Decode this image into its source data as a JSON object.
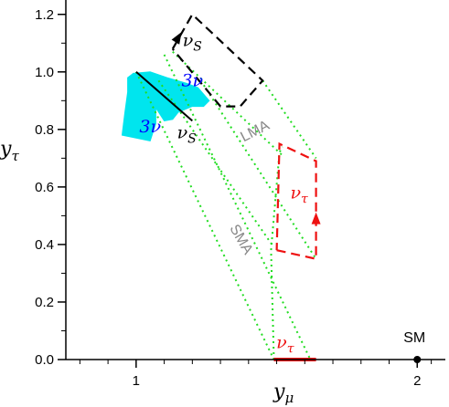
{
  "chart_data": {
    "type": "line",
    "xlabel": "y",
    "xlabel_sub": "μ",
    "ylabel": "y",
    "ylabel_sub": "τ",
    "xlim": [
      0.75,
      2.1
    ],
    "ylim": [
      0.0,
      1.25
    ],
    "xticks": [
      {
        "value": 1,
        "label": "1"
      },
      {
        "value": 2,
        "label": "2"
      }
    ],
    "xminor": [
      0.8,
      0.9,
      1.1,
      1.2,
      1.3,
      1.4,
      1.5,
      1.6,
      1.7,
      1.8,
      1.9,
      2.05
    ],
    "yticks": [
      {
        "value": 0.0,
        "label": "0.0"
      },
      {
        "value": 0.2,
        "label": "0.2"
      },
      {
        "value": 0.4,
        "label": "0.4"
      },
      {
        "value": 0.6,
        "label": "0.6"
      },
      {
        "value": 0.8,
        "label": "0.8"
      },
      {
        "value": 1.0,
        "label": "1.0"
      },
      {
        "value": 1.2,
        "label": "1.2"
      }
    ],
    "yminor": [
      0.1,
      0.3,
      0.5,
      0.7,
      0.9,
      1.1
    ],
    "colors": {
      "axis": "#000000",
      "green": "#22dd22",
      "black": "#000000",
      "red": "#ee1111",
      "cyan": "#00e5ee",
      "blue": "#0000ff",
      "gray": "#888888"
    },
    "series": [
      {
        "style": "dotted-green",
        "points": [
          [
            1.0,
            1.0
          ],
          [
            1.49,
            0.0
          ]
        ]
      },
      {
        "style": "dotted-green",
        "points": [
          [
            1.1,
            1.06
          ],
          [
            1.62,
            0.0
          ]
        ]
      },
      {
        "style": "dotted-green",
        "points": [
          [
            1.08,
            0.97
          ],
          [
            1.49,
            0.39
          ]
        ]
      },
      {
        "style": "dotted-green",
        "points": [
          [
            1.23,
            0.97
          ],
          [
            1.64,
            0.35
          ]
        ]
      },
      {
        "style": "dotted-green",
        "points": [
          [
            1.13,
            1.07
          ],
          [
            1.52,
            0.71
          ]
        ]
      },
      {
        "style": "dotted-green",
        "points": [
          [
            1.45,
            0.97
          ],
          [
            1.64,
            0.7
          ]
        ]
      },
      {
        "style": "dotted-green",
        "points": [
          [
            1.49,
            0.0
          ],
          [
            1.48,
            0.38
          ],
          [
            1.51,
            0.72
          ],
          [
            1.52,
            0.74
          ]
        ]
      },
      {
        "style": "dashed-black",
        "points": [
          [
            1.13,
            1.08
          ],
          [
            1.2,
            1.2
          ],
          [
            1.45,
            0.97
          ],
          [
            1.37,
            0.88
          ],
          [
            1.3,
            0.88
          ],
          [
            1.13,
            1.08
          ]
        ]
      },
      {
        "style": "dashed-red",
        "points": [
          [
            1.5,
            0.38
          ],
          [
            1.64,
            0.35
          ],
          [
            1.64,
            0.69
          ],
          [
            1.51,
            0.75
          ],
          [
            1.5,
            0.38
          ]
        ]
      },
      {
        "style": "solid-black",
        "points": [
          [
            1.0,
            1.0
          ],
          [
            1.2,
            0.83
          ]
        ]
      },
      {
        "style": "solid-red-thick",
        "points": [
          [
            1.49,
            0.0
          ],
          [
            1.64,
            0.0
          ]
        ]
      }
    ],
    "arrows": [
      {
        "color": "black",
        "at": [
          1.15,
          1.12
        ],
        "dir": [
          1.2,
          1.2
        ]
      },
      {
        "color": "red",
        "at": [
          1.64,
          0.49
        ],
        "dir": [
          1.64,
          0.57
        ]
      }
    ],
    "bands": [
      {
        "color": "cyan",
        "outer": [
          [
            0.99,
            0.995
          ],
          [
            1.05,
            1.0
          ],
          [
            1.11,
            0.98
          ],
          [
            1.18,
            0.96
          ],
          [
            1.22,
            0.945
          ]
        ],
        "inner": [
          [
            1.1,
            0.83
          ],
          [
            1.13,
            0.835
          ],
          [
            1.15,
            0.86
          ],
          [
            1.2,
            0.88
          ],
          [
            1.24,
            0.88
          ],
          [
            1.26,
            0.9
          ]
        ]
      },
      {
        "color": "cyan",
        "outer": [
          [
            0.99,
            0.995
          ],
          [
            0.97,
            0.98
          ],
          [
            0.97,
            0.93
          ],
          [
            0.96,
            0.86
          ],
          [
            0.95,
            0.78
          ]
        ],
        "inner": [
          [
            1.01,
            0.99
          ],
          [
            1.08,
            0.93
          ],
          [
            1.07,
            0.87
          ],
          [
            1.07,
            0.82
          ],
          [
            1.05,
            0.76
          ]
        ]
      }
    ],
    "points": [
      {
        "label": "SM",
        "x": 2.0,
        "y": 0.0
      }
    ],
    "annotations": [
      {
        "text": "ν",
        "sub": "S",
        "x": 1.2,
        "y": 1.09,
        "color": "black"
      },
      {
        "text": "ν",
        "sub": "S",
        "x": 1.18,
        "y": 0.77,
        "color": "black"
      },
      {
        "text": "3ν",
        "x": 1.2,
        "y": 0.95,
        "color": "blue"
      },
      {
        "text": "3ν",
        "x": 1.05,
        "y": 0.79,
        "color": "blue"
      },
      {
        "text": "LMA",
        "x": 1.43,
        "y": 0.78,
        "color": "gray",
        "rotate": -27
      },
      {
        "text": "SMA",
        "x": 1.36,
        "y": 0.41,
        "color": "gray",
        "rotate": 60
      },
      {
        "text": "ν",
        "sub": "τ",
        "x": 1.58,
        "y": 0.56,
        "color": "red"
      },
      {
        "text": "ν",
        "sub": "τ",
        "x": 1.53,
        "y": 0.04,
        "color": "red"
      },
      {
        "text": "SM",
        "x": 1.99,
        "y": 0.06,
        "color": "black"
      }
    ]
  }
}
